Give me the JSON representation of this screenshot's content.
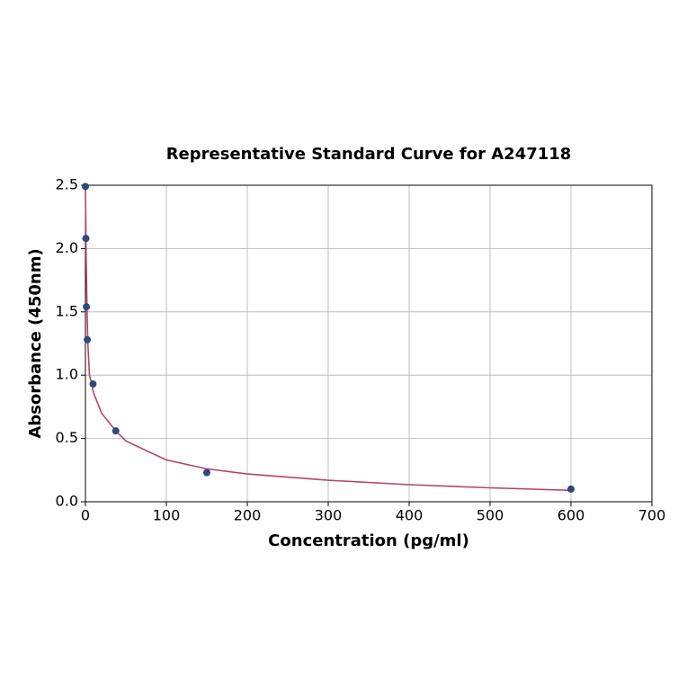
{
  "chart_data": {
    "type": "scatter",
    "title": "Representative Standard Curve for A247118",
    "x_label": "Concentration (pg/ml)",
    "y_label": "Absorbance (450nm)",
    "xlim": [
      0,
      700
    ],
    "xticks": [
      0,
      100,
      200,
      300,
      400,
      500,
      600,
      700
    ],
    "ylim": [
      0,
      2.5
    ],
    "yticks": [
      {
        "value": 0,
        "label": "0.0"
      },
      {
        "value": 0.5,
        "label": "0.5"
      },
      {
        "value": 1,
        "label": "1.0"
      },
      {
        "value": 1.5,
        "label": "1.5"
      },
      {
        "value": 2,
        "label": "2.0"
      },
      {
        "value": 2.5,
        "label": "2.5"
      }
    ],
    "grid": true,
    "series": [
      {
        "type": "line",
        "color": "#b5446e",
        "x": [
          0,
          1,
          2,
          3,
          5,
          7,
          10,
          20,
          37.5,
          50,
          100,
          150,
          200,
          300,
          400,
          500,
          600
        ],
        "values": [
          2.5,
          1.9,
          1.5,
          1.25,
          1.0,
          0.95,
          0.86,
          0.7,
          0.56,
          0.48,
          0.33,
          0.26,
          0.22,
          0.17,
          0.135,
          0.11,
          0.09
        ]
      },
      {
        "type": "scatter",
        "color": "#2e4a7a",
        "x": [
          0,
          0.6,
          1.2,
          2.3,
          9.4,
          37.5,
          150,
          600
        ],
        "values": [
          2.49,
          2.08,
          1.54,
          1.28,
          0.93,
          0.56,
          0.23,
          0.1
        ]
      }
    ]
  }
}
